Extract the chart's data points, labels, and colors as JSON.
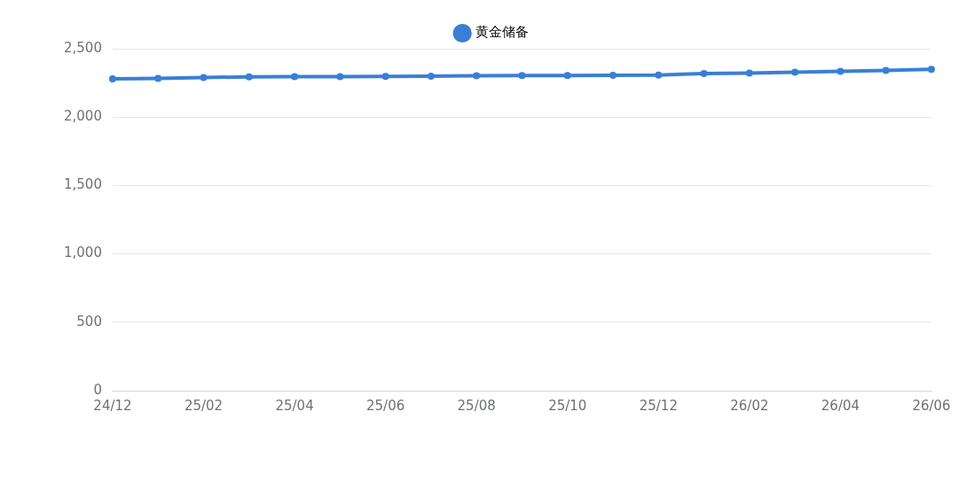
{
  "chart_data": {
    "type": "line",
    "categories": [
      "24/12",
      null,
      "25/02",
      null,
      "25/04",
      null,
      "25/06",
      null,
      "25/08",
      null,
      "25/10",
      null,
      "25/12",
      null,
      "26/02",
      null,
      "26/04",
      null,
      "26/06"
    ],
    "series": [
      {
        "name": "黄金储备",
        "color": "#3a7fd5",
        "values": [
          2279,
          2283,
          2290,
          2294,
          2296,
          2296,
          2298,
          2300,
          2303,
          2304,
          2304,
          2306,
          2308,
          2318,
          2322,
          2329,
          2335,
          2341,
          2350
        ]
      }
    ],
    "ylim": [
      0,
      2500
    ],
    "yticks": [
      0,
      {
        "value": 500,
        "label": "500"
      },
      {
        "value": 1000,
        "label": "1,000"
      },
      {
        "value": 1500,
        "label": "1,500"
      },
      {
        "value": 2000,
        "label": "2,000"
      },
      {
        "value": 2500,
        "label": "2,500"
      }
    ],
    "grid": "y",
    "legend": "top",
    "marker": "circle",
    "line_style": "solid"
  }
}
